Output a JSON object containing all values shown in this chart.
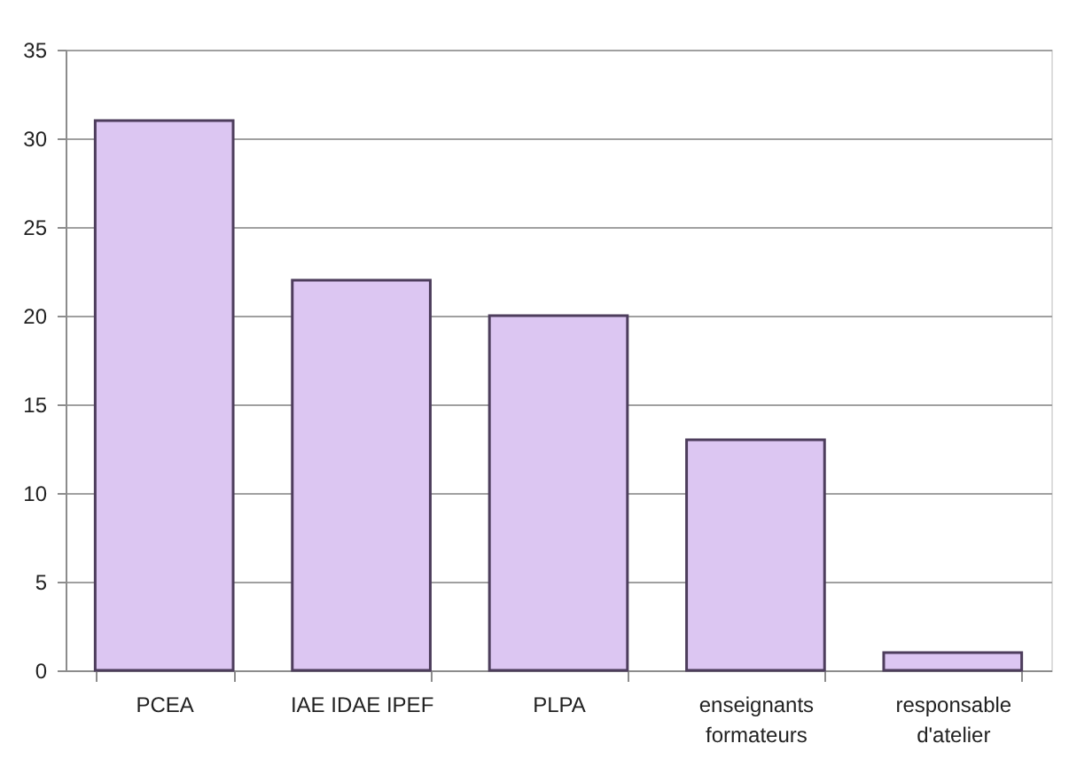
{
  "chart_data": {
    "type": "bar",
    "categories": [
      "PCEA",
      "IAE IDAE IPEF",
      "PLPA",
      "enseignants formateurs",
      "responsable d'atelier"
    ],
    "values": [
      31,
      22,
      20,
      13,
      1
    ],
    "color": "#dcc6f2",
    "ylim": [
      0,
      35
    ],
    "yticks": [
      0,
      5,
      10,
      15,
      20,
      25,
      30,
      35
    ],
    "grid": "y"
  }
}
